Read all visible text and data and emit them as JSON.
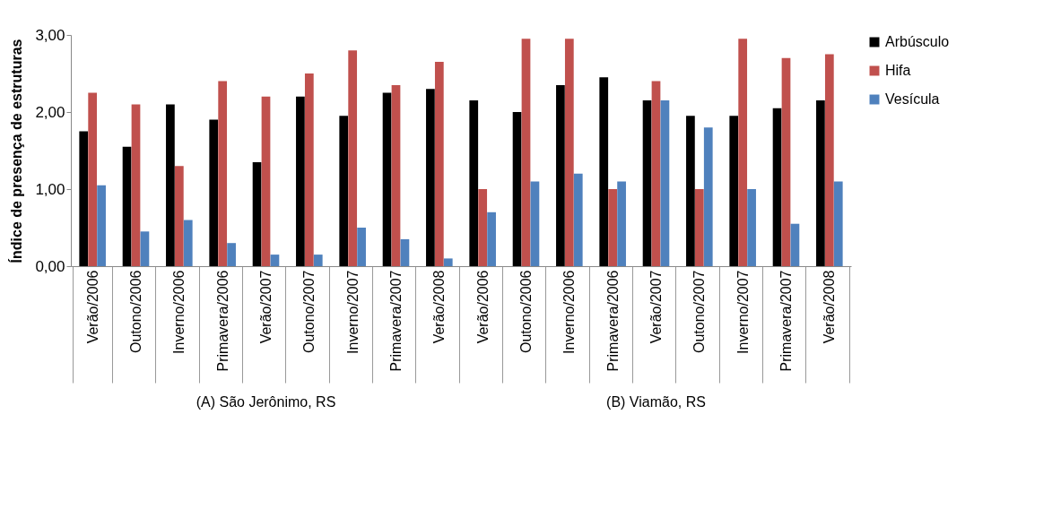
{
  "chart_data": {
    "type": "bar",
    "ylabel": "Índice de presença de estruturas",
    "categories": [
      "Verão/2006",
      "Outono/2006",
      "Inverno/2006",
      "Primavera/2006",
      "Verão/2007",
      "Outono/2007",
      "Inverno/2007",
      "Primavera/2007",
      "Verão/2008",
      "Verão/2006",
      "Outono/2006",
      "Inverno/2006",
      "Primavera/2006",
      "Verão/2007",
      "Outono/2007",
      "Inverno/2007",
      "Primavera/2007",
      "Verão/2008"
    ],
    "series": [
      {
        "name": "Arbúsculo",
        "color": "#000000",
        "values": [
          1.75,
          1.55,
          2.1,
          1.9,
          1.35,
          2.2,
          1.95,
          2.25,
          2.3,
          2.15,
          2.0,
          2.35,
          2.45,
          2.15,
          1.95,
          1.95,
          2.05,
          2.15
        ]
      },
      {
        "name": "Hifa",
        "color": "#c0504d",
        "values": [
          2.25,
          2.1,
          1.3,
          2.4,
          2.2,
          2.5,
          2.8,
          2.35,
          2.65,
          1.0,
          2.95,
          2.95,
          1.0,
          2.4,
          1.0,
          2.95,
          2.7,
          2.75
        ]
      },
      {
        "name": "Vesícula",
        "color": "#4f81bd",
        "values": [
          1.05,
          0.45,
          0.6,
          0.3,
          0.15,
          0.15,
          0.5,
          0.35,
          0.1,
          0.7,
          1.1,
          1.2,
          1.1,
          2.15,
          1.8,
          1.0,
          0.55,
          1.1
        ]
      }
    ],
    "ylim": [
      0,
      3
    ],
    "yticks": [
      {
        "value": 0,
        "label": "0,00"
      },
      {
        "value": 1,
        "label": "1,00"
      },
      {
        "value": 2,
        "label": "2,00"
      },
      {
        "value": 3,
        "label": "3,00"
      }
    ],
    "annotations": [
      "(A) São Jerônimo, RS",
      "(B) Viamão, RS"
    ],
    "grid": false,
    "legend": "right"
  }
}
